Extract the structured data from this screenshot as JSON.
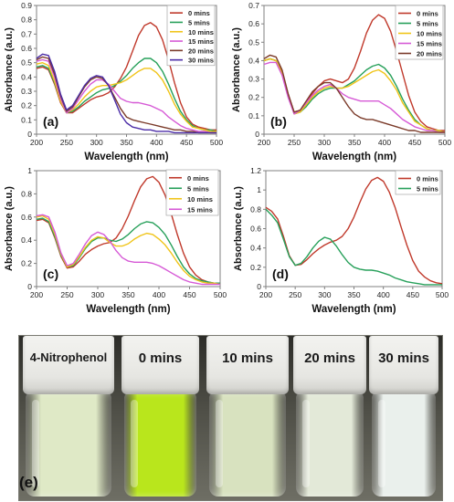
{
  "chart_data": [
    {
      "type": "line",
      "panel_label": "(a)",
      "xlabel": "Wavelength (nm)",
      "ylabel": "Absorbance (a.u.)",
      "xlim": [
        200,
        500
      ],
      "ylim": [
        0,
        0.9
      ],
      "xticks": [
        200,
        250,
        300,
        350,
        400,
        450,
        500
      ],
      "yticks": [
        0,
        0.1,
        0.2,
        0.3,
        0.4,
        0.5,
        0.6,
        0.7,
        0.8,
        0.9
      ],
      "ytick_labels": [
        "0",
        "0.1",
        "0.2",
        "0.3",
        "0.4",
        "0.5",
        "0.6",
        "0.7",
        "0.8",
        "0.9"
      ],
      "x": [
        200,
        210,
        220,
        230,
        240,
        250,
        260,
        270,
        280,
        290,
        300,
        310,
        320,
        330,
        340,
        350,
        360,
        370,
        380,
        390,
        400,
        410,
        420,
        430,
        440,
        450,
        460,
        470,
        480,
        490,
        500
      ],
      "series": [
        {
          "name": "0 mins",
          "color": "#c0392b",
          "values": [
            0.46,
            0.47,
            0.45,
            0.35,
            0.22,
            0.15,
            0.15,
            0.18,
            0.21,
            0.24,
            0.26,
            0.27,
            0.29,
            0.33,
            0.39,
            0.47,
            0.58,
            0.69,
            0.76,
            0.78,
            0.75,
            0.66,
            0.52,
            0.36,
            0.22,
            0.12,
            0.07,
            0.05,
            0.04,
            0.03,
            0.03
          ]
        },
        {
          "name": "5 mins",
          "color": "#27a05a",
          "values": [
            0.47,
            0.48,
            0.46,
            0.36,
            0.23,
            0.15,
            0.16,
            0.19,
            0.23,
            0.26,
            0.29,
            0.31,
            0.32,
            0.34,
            0.37,
            0.41,
            0.46,
            0.5,
            0.53,
            0.53,
            0.5,
            0.44,
            0.35,
            0.25,
            0.16,
            0.1,
            0.06,
            0.04,
            0.03,
            0.03,
            0.02
          ]
        },
        {
          "name": "10 mins",
          "color": "#f0c419",
          "values": [
            0.49,
            0.5,
            0.48,
            0.37,
            0.23,
            0.15,
            0.17,
            0.21,
            0.26,
            0.3,
            0.33,
            0.34,
            0.34,
            0.35,
            0.36,
            0.38,
            0.41,
            0.44,
            0.46,
            0.46,
            0.43,
            0.38,
            0.3,
            0.21,
            0.14,
            0.09,
            0.05,
            0.04,
            0.03,
            0.02,
            0.02
          ]
        },
        {
          "name": "15 mins",
          "color": "#d65ad6",
          "values": [
            0.51,
            0.52,
            0.51,
            0.4,
            0.25,
            0.15,
            0.18,
            0.24,
            0.3,
            0.35,
            0.38,
            0.38,
            0.35,
            0.3,
            0.25,
            0.23,
            0.22,
            0.22,
            0.21,
            0.2,
            0.18,
            0.16,
            0.12,
            0.09,
            0.06,
            0.04,
            0.03,
            0.02,
            0.02,
            0.01,
            0.01
          ]
        },
        {
          "name": "20 mins",
          "color": "#7b3b2a",
          "values": [
            0.52,
            0.54,
            0.53,
            0.42,
            0.27,
            0.16,
            0.19,
            0.26,
            0.33,
            0.38,
            0.4,
            0.39,
            0.34,
            0.26,
            0.18,
            0.12,
            0.1,
            0.09,
            0.08,
            0.07,
            0.06,
            0.05,
            0.04,
            0.03,
            0.03,
            0.02,
            0.02,
            0.01,
            0.01,
            0.01,
            0.01
          ]
        },
        {
          "name": "30 mins",
          "color": "#4b2ca6",
          "values": [
            0.53,
            0.56,
            0.55,
            0.44,
            0.28,
            0.17,
            0.2,
            0.27,
            0.34,
            0.39,
            0.41,
            0.4,
            0.34,
            0.24,
            0.14,
            0.08,
            0.05,
            0.04,
            0.03,
            0.03,
            0.02,
            0.02,
            0.02,
            0.01,
            0.01,
            0.01,
            0.01,
            0.01,
            0.01,
            0.01,
            0.01
          ]
        }
      ]
    },
    {
      "type": "line",
      "panel_label": "(b)",
      "xlabel": "Wavelength (nm)",
      "ylabel": "Absorbance (a.u.)",
      "xlim": [
        200,
        500
      ],
      "ylim": [
        0,
        0.7
      ],
      "xticks": [
        200,
        250,
        300,
        350,
        400,
        450,
        500
      ],
      "yticks": [
        0,
        0.1,
        0.2,
        0.3,
        0.4,
        0.5,
        0.6,
        0.7
      ],
      "ytick_labels": [
        "0",
        "0.1",
        "0.2",
        "0.3",
        "0.4",
        "0.5",
        "0.6",
        "0.7"
      ],
      "x": [
        200,
        210,
        220,
        230,
        240,
        250,
        260,
        270,
        280,
        290,
        300,
        310,
        320,
        330,
        340,
        350,
        360,
        370,
        380,
        390,
        400,
        410,
        420,
        430,
        440,
        450,
        460,
        470,
        480,
        490,
        500
      ],
      "series": [
        {
          "name": "0 mins",
          "color": "#c0392b",
          "values": [
            0.4,
            0.41,
            0.4,
            0.34,
            0.22,
            0.12,
            0.13,
            0.17,
            0.22,
            0.26,
            0.29,
            0.3,
            0.29,
            0.28,
            0.3,
            0.36,
            0.45,
            0.55,
            0.62,
            0.65,
            0.63,
            0.56,
            0.45,
            0.33,
            0.21,
            0.12,
            0.07,
            0.04,
            0.03,
            0.02,
            0.02
          ]
        },
        {
          "name": "5 mins",
          "color": "#27a05a",
          "values": [
            0.4,
            0.41,
            0.4,
            0.33,
            0.21,
            0.11,
            0.12,
            0.15,
            0.19,
            0.22,
            0.24,
            0.25,
            0.25,
            0.25,
            0.27,
            0.29,
            0.32,
            0.35,
            0.37,
            0.38,
            0.36,
            0.32,
            0.26,
            0.19,
            0.13,
            0.08,
            0.05,
            0.03,
            0.02,
            0.02,
            0.01
          ]
        },
        {
          "name": "10 mins",
          "color": "#f0c419",
          "values": [
            0.4,
            0.41,
            0.4,
            0.33,
            0.21,
            0.11,
            0.12,
            0.16,
            0.2,
            0.23,
            0.25,
            0.26,
            0.25,
            0.25,
            0.26,
            0.28,
            0.3,
            0.32,
            0.34,
            0.35,
            0.33,
            0.29,
            0.24,
            0.17,
            0.12,
            0.07,
            0.05,
            0.03,
            0.02,
            0.02,
            0.01
          ]
        },
        {
          "name": "15 mins",
          "color": "#d65ad6",
          "values": [
            0.38,
            0.39,
            0.39,
            0.32,
            0.2,
            0.11,
            0.13,
            0.17,
            0.21,
            0.24,
            0.26,
            0.27,
            0.25,
            0.22,
            0.2,
            0.19,
            0.18,
            0.18,
            0.18,
            0.18,
            0.16,
            0.14,
            0.11,
            0.08,
            0.06,
            0.04,
            0.03,
            0.02,
            0.02,
            0.01,
            0.01
          ]
        },
        {
          "name": "20 mins",
          "color": "#7b3b2a",
          "values": [
            0.41,
            0.43,
            0.42,
            0.35,
            0.22,
            0.12,
            0.13,
            0.18,
            0.23,
            0.26,
            0.28,
            0.28,
            0.25,
            0.2,
            0.15,
            0.11,
            0.09,
            0.08,
            0.08,
            0.07,
            0.06,
            0.05,
            0.04,
            0.03,
            0.02,
            0.02,
            0.01,
            0.01,
            0.01,
            0.01,
            0.01
          ]
        }
      ]
    },
    {
      "type": "line",
      "panel_label": "(c)",
      "xlabel": "Wavelength (nm)",
      "ylabel": "Absorbance (a.u.)",
      "xlim": [
        200,
        500
      ],
      "ylim": [
        0,
        1.0
      ],
      "xticks": [
        200,
        250,
        300,
        350,
        400,
        450,
        500
      ],
      "yticks": [
        0,
        0.2,
        0.4,
        0.6,
        0.8,
        1.0
      ],
      "ytick_labels": [
        "0",
        "0.2",
        "0.4",
        "0.6",
        "0.8",
        "1"
      ],
      "x": [
        200,
        210,
        220,
        230,
        240,
        250,
        260,
        270,
        280,
        290,
        300,
        310,
        320,
        330,
        340,
        350,
        360,
        370,
        380,
        390,
        400,
        410,
        420,
        430,
        440,
        450,
        460,
        470,
        480,
        490,
        500
      ],
      "series": [
        {
          "name": "0 mins",
          "color": "#c0392b",
          "values": [
            0.57,
            0.58,
            0.55,
            0.42,
            0.26,
            0.16,
            0.17,
            0.22,
            0.28,
            0.32,
            0.35,
            0.37,
            0.38,
            0.42,
            0.5,
            0.61,
            0.74,
            0.86,
            0.93,
            0.95,
            0.9,
            0.79,
            0.63,
            0.45,
            0.29,
            0.17,
            0.1,
            0.06,
            0.04,
            0.03,
            0.03
          ]
        },
        {
          "name": "5 mins",
          "color": "#27a05a",
          "values": [
            0.58,
            0.59,
            0.56,
            0.43,
            0.27,
            0.17,
            0.18,
            0.25,
            0.33,
            0.39,
            0.42,
            0.42,
            0.4,
            0.39,
            0.41,
            0.45,
            0.5,
            0.54,
            0.56,
            0.55,
            0.51,
            0.45,
            0.36,
            0.26,
            0.17,
            0.11,
            0.07,
            0.05,
            0.04,
            0.03,
            0.03
          ]
        },
        {
          "name": "10 mins",
          "color": "#f0c419",
          "values": [
            0.6,
            0.61,
            0.58,
            0.45,
            0.28,
            0.17,
            0.19,
            0.26,
            0.34,
            0.4,
            0.43,
            0.42,
            0.38,
            0.35,
            0.35,
            0.37,
            0.41,
            0.44,
            0.46,
            0.45,
            0.41,
            0.36,
            0.29,
            0.21,
            0.14,
            0.09,
            0.06,
            0.04,
            0.03,
            0.03,
            0.02
          ]
        },
        {
          "name": "15 mins",
          "color": "#d65ad6",
          "values": [
            0.61,
            0.62,
            0.6,
            0.47,
            0.29,
            0.18,
            0.2,
            0.28,
            0.37,
            0.44,
            0.47,
            0.45,
            0.39,
            0.31,
            0.25,
            0.22,
            0.21,
            0.21,
            0.21,
            0.2,
            0.18,
            0.15,
            0.12,
            0.09,
            0.06,
            0.04,
            0.03,
            0.02,
            0.02,
            0.02,
            0.02
          ]
        }
      ]
    },
    {
      "type": "line",
      "panel_label": "(d)",
      "xlabel": "Wavelength (nm)",
      "ylabel": "Absorbance (a.u.)",
      "xlim": [
        200,
        500
      ],
      "ylim": [
        0,
        1.2
      ],
      "xticks": [
        200,
        250,
        300,
        350,
        400,
        450,
        500
      ],
      "yticks": [
        0,
        0.2,
        0.4,
        0.6,
        0.8,
        1.0,
        1.2
      ],
      "ytick_labels": [
        "0",
        "0.2",
        "0.4",
        "0.6",
        "0.8",
        "1",
        "1.2"
      ],
      "x": [
        200,
        210,
        220,
        230,
        240,
        250,
        260,
        270,
        280,
        290,
        300,
        310,
        320,
        330,
        340,
        350,
        360,
        370,
        380,
        390,
        400,
        410,
        420,
        430,
        440,
        450,
        460,
        470,
        480,
        490,
        500
      ],
      "series": [
        {
          "name": "0 mins",
          "color": "#c0392b",
          "values": [
            0.82,
            0.78,
            0.7,
            0.52,
            0.32,
            0.22,
            0.23,
            0.28,
            0.34,
            0.39,
            0.43,
            0.46,
            0.48,
            0.52,
            0.6,
            0.72,
            0.87,
            1.01,
            1.1,
            1.13,
            1.09,
            0.98,
            0.82,
            0.62,
            0.43,
            0.27,
            0.16,
            0.1,
            0.06,
            0.04,
            0.03
          ]
        },
        {
          "name": "5 mins",
          "color": "#27a05a",
          "values": [
            0.8,
            0.74,
            0.66,
            0.49,
            0.31,
            0.22,
            0.24,
            0.31,
            0.4,
            0.47,
            0.51,
            0.49,
            0.42,
            0.33,
            0.25,
            0.2,
            0.18,
            0.17,
            0.17,
            0.16,
            0.14,
            0.12,
            0.09,
            0.07,
            0.05,
            0.04,
            0.03,
            0.02,
            0.02,
            0.02,
            0.02
          ]
        }
      ]
    }
  ],
  "photo": {
    "panel_label": "(e)",
    "vials": [
      {
        "label": "4-Nitrophenol",
        "liquid": "#dfe9c6"
      },
      {
        "label": "0 mins",
        "liquid": "#b9e61c"
      },
      {
        "label": "10 mins",
        "liquid": "#d8e2bf"
      },
      {
        "label": "20 mins",
        "liquid": "#e3e9d8"
      },
      {
        "label": "30 mins",
        "liquid": "#eaf0ec"
      }
    ]
  }
}
